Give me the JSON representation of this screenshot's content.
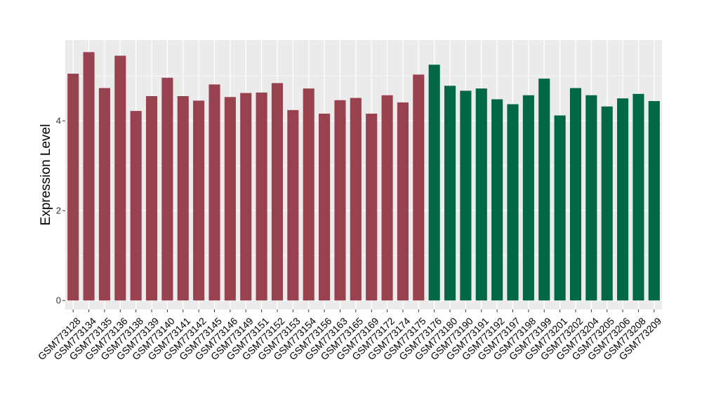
{
  "chart_data": {
    "type": "bar",
    "ylabel": "Expression Level",
    "xlabel": "",
    "ylim": [
      -0.2,
      5.8
    ],
    "yticks": [
      0,
      2,
      4
    ],
    "grid": true,
    "panel_background": "#EBEBEB",
    "grid_color": "#FFFFFF",
    "categories": [
      "GSM773128",
      "GSM773134",
      "GSM773135",
      "GSM773136",
      "GSM773138",
      "GSM773139",
      "GSM773140",
      "GSM773141",
      "GSM773142",
      "GSM773145",
      "GSM773146",
      "GSM773149",
      "GSM773151",
      "GSM773152",
      "GSM773153",
      "GSM773154",
      "GSM773156",
      "GSM773163",
      "GSM773165",
      "GSM773169",
      "GSM773172",
      "GSM773174",
      "GSM773175",
      "GSM773176",
      "GSM773180",
      "GSM773190",
      "GSM773191",
      "GSM773192",
      "GSM773197",
      "GSM773198",
      "GSM773199",
      "GSM773201",
      "GSM773202",
      "GSM773204",
      "GSM773205",
      "GSM773206",
      "GSM773208",
      "GSM773209"
    ],
    "values": [
      5.05,
      5.53,
      4.73,
      5.45,
      4.22,
      4.55,
      4.96,
      4.55,
      4.45,
      4.81,
      4.53,
      4.62,
      4.63,
      4.84,
      4.24,
      4.72,
      4.16,
      4.46,
      4.51,
      4.16,
      4.57,
      4.41,
      5.03,
      5.25,
      4.78,
      4.67,
      4.72,
      4.48,
      4.37,
      4.57,
      4.94,
      4.12,
      4.73,
      4.57,
      4.32,
      4.5,
      4.6,
      4.44
    ],
    "bar_colors": [
      "#99424F",
      "#99424F",
      "#99424F",
      "#99424F",
      "#99424F",
      "#99424F",
      "#99424F",
      "#99424F",
      "#99424F",
      "#99424F",
      "#99424F",
      "#99424F",
      "#99424F",
      "#99424F",
      "#99424F",
      "#99424F",
      "#99424F",
      "#99424F",
      "#99424F",
      "#99424F",
      "#99424F",
      "#99424F",
      "#99424F",
      "#006845",
      "#006845",
      "#006845",
      "#006845",
      "#006845",
      "#006845",
      "#006845",
      "#006845",
      "#006845",
      "#006845",
      "#006845",
      "#006845",
      "#006845",
      "#006845",
      "#006845"
    ]
  }
}
